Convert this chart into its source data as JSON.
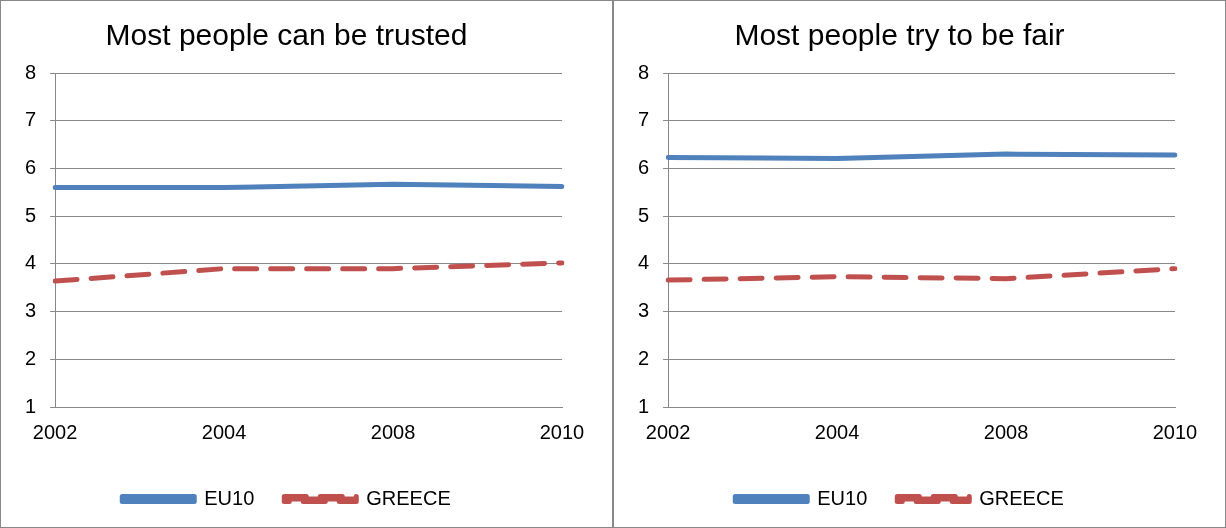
{
  "chart_data": [
    {
      "type": "line",
      "title": "Most people can be trusted",
      "categories": [
        "2002",
        "2004",
        "2008",
        "2010"
      ],
      "ylim": [
        1,
        8
      ],
      "yticks": [
        1,
        2,
        3,
        4,
        5,
        6,
        7,
        8
      ],
      "grid": "y",
      "legend": "bottom",
      "series": [
        {
          "name": "EU10",
          "color": "#4f81bd",
          "line_style": "solid",
          "values": [
            5.6,
            5.6,
            5.67,
            5.62
          ]
        },
        {
          "name": "GREECE",
          "color": "#c0504d",
          "line_style": "dashed",
          "values": [
            3.64,
            3.9,
            3.9,
            4.02
          ]
        }
      ]
    },
    {
      "type": "line",
      "title": "Most people try to be fair",
      "categories": [
        "2002",
        "2004",
        "2008",
        "2010"
      ],
      "ylim": [
        1,
        8
      ],
      "yticks": [
        1,
        2,
        3,
        4,
        5,
        6,
        7,
        8
      ],
      "grid": "y",
      "legend": "bottom",
      "series": [
        {
          "name": "EU10",
          "color": "#4f81bd",
          "line_style": "solid",
          "values": [
            6.23,
            6.21,
            6.3,
            6.28
          ]
        },
        {
          "name": "GREECE",
          "color": "#c0504d",
          "line_style": "dashed",
          "values": [
            3.66,
            3.73,
            3.69,
            3.9
          ]
        }
      ]
    }
  ]
}
